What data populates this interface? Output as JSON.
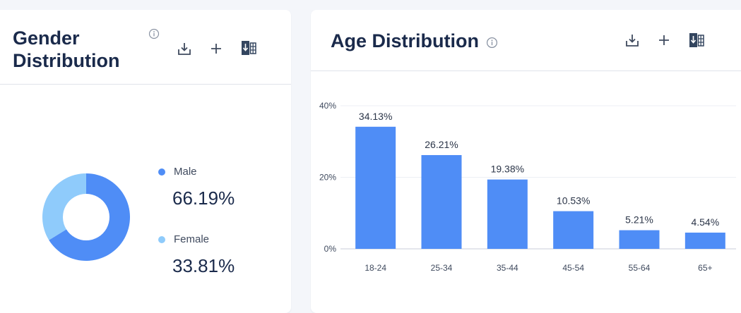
{
  "gender_card": {
    "title": "Gender Distribution",
    "icons": [
      "info-icon",
      "download-icon",
      "plus-icon",
      "excel-export-icon"
    ]
  },
  "age_card": {
    "title": "Age Distribution",
    "icons": [
      "info-icon",
      "download-icon",
      "plus-icon",
      "excel-export-icon"
    ]
  },
  "colors": {
    "primary": "#4f8df6",
    "secondary": "#8fcbfb",
    "title": "#1a2a4b"
  },
  "chart_data": [
    {
      "type": "pie",
      "title": "Gender Distribution",
      "donut": true,
      "legend": "right",
      "series": [
        {
          "name": "Male",
          "value": 66.19,
          "label": "66.19%",
          "color": "#4f8df6"
        },
        {
          "name": "Female",
          "value": 33.81,
          "label": "33.81%",
          "color": "#8fcbfb"
        }
      ]
    },
    {
      "type": "bar",
      "title": "Age Distribution",
      "categories": [
        "18-24",
        "25-34",
        "35-44",
        "45-54",
        "55-64",
        "65+"
      ],
      "values": [
        34.13,
        26.21,
        19.38,
        10.53,
        5.21,
        4.54
      ],
      "value_labels": [
        "34.13%",
        "26.21%",
        "19.38%",
        "10.53%",
        "5.21%",
        "4.54%"
      ],
      "yticks": [
        "0%",
        "20%",
        "40%"
      ],
      "ytick_values": [
        0,
        20,
        40
      ],
      "ylim": [
        0,
        40
      ],
      "grid": true,
      "color": "#4f8df6"
    }
  ]
}
